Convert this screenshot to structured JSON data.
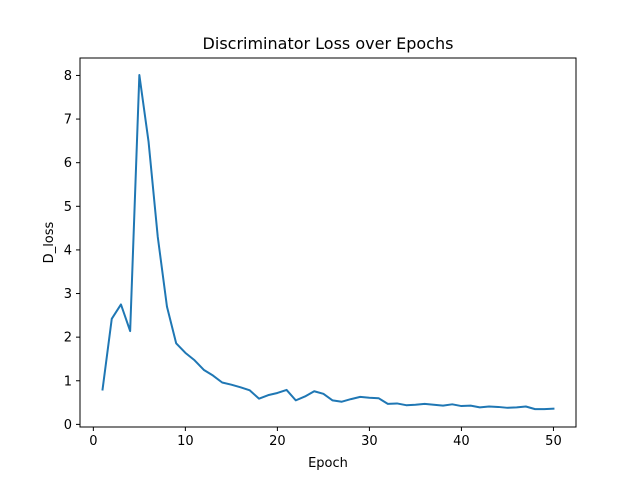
{
  "chart_data": {
    "type": "line",
    "title": "Discriminator Loss over Epochs",
    "xlabel": "Epoch",
    "ylabel": "D_loss",
    "xlim": [
      -1.45,
      52.45
    ],
    "ylim": [
      -0.06,
      8.4
    ],
    "xticks": [
      0,
      10,
      20,
      30,
      40,
      50
    ],
    "yticks": [
      0,
      1,
      2,
      3,
      4,
      5,
      6,
      7,
      8
    ],
    "grid": false,
    "legend": "none",
    "series": [
      {
        "color": "#1f77b4",
        "x": [
          1,
          2,
          3,
          4,
          5,
          6,
          7,
          8,
          9,
          10,
          11,
          12,
          13,
          14,
          15,
          16,
          17,
          18,
          19,
          20,
          21,
          22,
          23,
          24,
          25,
          26,
          27,
          28,
          29,
          30,
          31,
          32,
          33,
          34,
          35,
          36,
          37,
          38,
          39,
          40,
          41,
          42,
          43,
          44,
          45,
          46,
          47,
          48,
          49,
          50
        ],
        "y": [
          0.8,
          2.42,
          2.75,
          2.14,
          8.01,
          6.48,
          4.3,
          2.7,
          1.86,
          1.64,
          1.47,
          1.25,
          1.12,
          0.96,
          0.91,
          0.85,
          0.78,
          0.59,
          0.67,
          0.72,
          0.79,
          0.55,
          0.64,
          0.76,
          0.7,
          0.55,
          0.52,
          0.58,
          0.63,
          0.61,
          0.6,
          0.47,
          0.48,
          0.44,
          0.45,
          0.47,
          0.45,
          0.43,
          0.46,
          0.42,
          0.43,
          0.39,
          0.41,
          0.4,
          0.38,
          0.39,
          0.41,
          0.35,
          0.35,
          0.36
        ]
      }
    ]
  }
}
